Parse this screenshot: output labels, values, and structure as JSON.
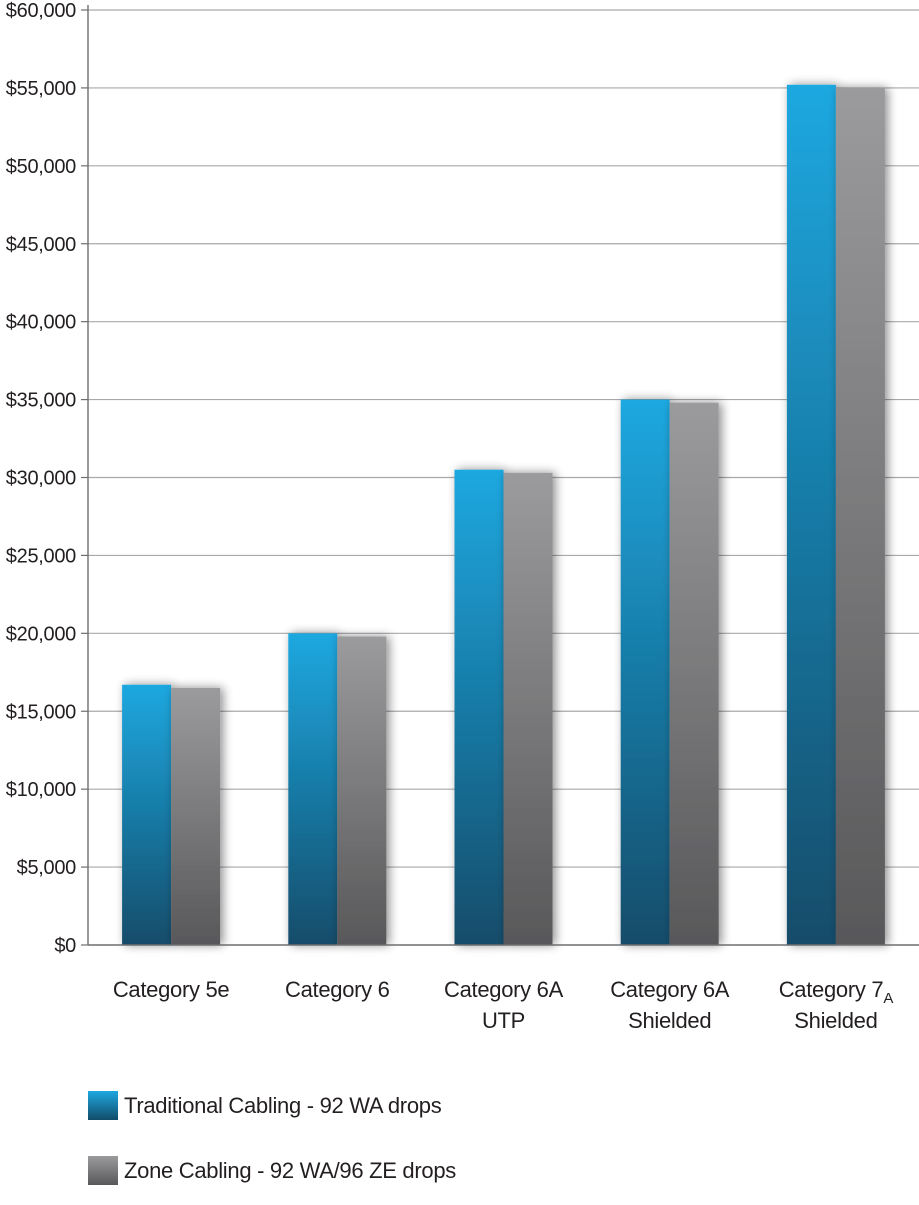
{
  "chart_data": {
    "type": "bar",
    "title": "",
    "xlabel": "",
    "ylabel": "",
    "ylim": [
      0,
      60000
    ],
    "y_ticks": [
      "$0",
      "$5,000",
      "$10,000",
      "$15,000",
      "$20,000",
      "$25,000",
      "$30,000",
      "$35,000",
      "$40,000",
      "$45,000",
      "$50,000",
      "$55,000",
      "$60,000"
    ],
    "grid": true,
    "legend_position": "bottom-left",
    "categories": [
      {
        "lines": [
          "Category 5e"
        ]
      },
      {
        "lines": [
          "Category 6"
        ]
      },
      {
        "lines": [
          "Category 6A",
          "UTP"
        ]
      },
      {
        "lines": [
          "Category 6A",
          "Shielded"
        ]
      },
      {
        "lines": [
          "Category 7",
          "Shielded"
        ],
        "subscript": "A"
      }
    ],
    "series": [
      {
        "name": "Traditional Cabling - 92 WA drops",
        "color_top": "#1ea8e0",
        "color_bottom": "#124c6a",
        "values": [
          16700,
          20000,
          30500,
          35000,
          55200
        ]
      },
      {
        "name": "Zone Cabling - 92 WA/96 ZE drops",
        "color_top": "#9b9b9d",
        "color_bottom": "#58585a",
        "values": [
          16500,
          19800,
          30300,
          34800,
          55000
        ]
      }
    ]
  }
}
